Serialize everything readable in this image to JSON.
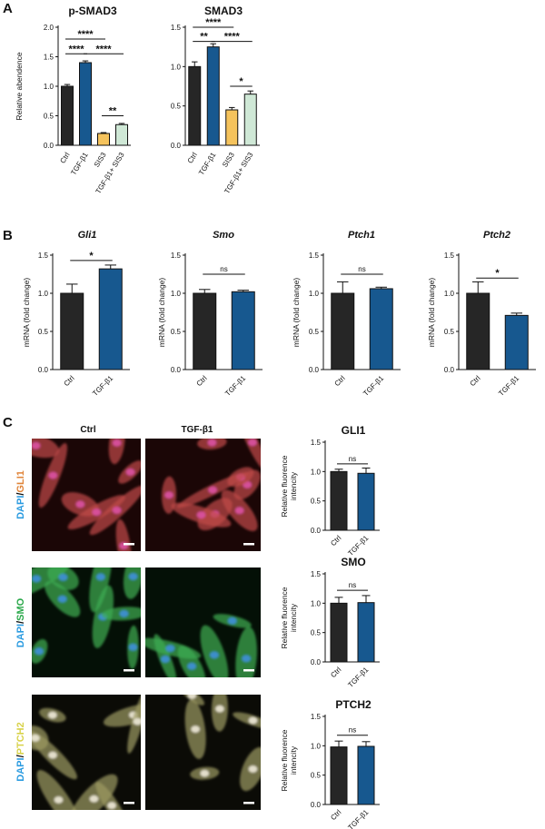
{
  "panel_labels": [
    "A",
    "B",
    "C"
  ],
  "micro": {
    "col_headers": [
      "Ctrl",
      "TGF-β1"
    ],
    "rows": [
      {
        "dapi": "DAPI",
        "sep": "/",
        "marker": "GLI1",
        "marker_color": "#e0853a",
        "bg": "#1b0606",
        "cell": "#c24a48",
        "nucleus": "#d8509e"
      },
      {
        "dapi": "DAPI",
        "sep": "/",
        "marker": "SMO",
        "marker_color": "#2aa84a",
        "bg": "#041006",
        "cell": "#3fae52",
        "nucleus": "#3e8fd2"
      },
      {
        "dapi": "DAPI",
        "sep": "/",
        "marker": "PTCH2",
        "marker_color": "#d8d24a",
        "bg": "#0b0b06",
        "cell": "#9c9a62",
        "nucleus": "#e8e4d2"
      }
    ],
    "dapi_color": "#2b9be0"
  },
  "colors": {
    "ctrl": "#262626",
    "tgf": "#17588f",
    "sis3": "#f5c35c",
    "combo": "#cfe8d6"
  },
  "chart_data": [
    {
      "id": "A1",
      "type": "bar",
      "title": "p-SMAD3",
      "title_italic": false,
      "ylabel": "Relative abendence",
      "categories": [
        "Ctrl",
        "TGF-β1",
        "SIS3",
        "TGF-β1+ SIS3"
      ],
      "values": [
        1.0,
        1.4,
        0.2,
        0.35
      ],
      "errors": [
        0.03,
        0.03,
        0.015,
        0.02
      ],
      "bar_colors": [
        "#262626",
        "#17588f",
        "#f5c35c",
        "#cfe8d6"
      ],
      "ylim": [
        0,
        2.0
      ],
      "yticks": [
        0.0,
        0.5,
        1.0,
        1.5,
        2.0
      ],
      "tick_labels": [
        "0.0",
        "0.5",
        "1.0",
        "1.5",
        "2.0"
      ],
      "sig": [
        {
          "a": 0,
          "b": 2,
          "label": "****",
          "y": 1.8
        },
        {
          "a": 0,
          "b": 1,
          "label": "****",
          "y": 1.55
        },
        {
          "a": 1,
          "b": 3,
          "label": "****",
          "y": 1.55
        },
        {
          "a": 2,
          "b": 3,
          "label": "**",
          "y": 0.5
        }
      ]
    },
    {
      "id": "A2",
      "type": "bar",
      "title": "SMAD3",
      "title_italic": false,
      "ylabel": "",
      "categories": [
        "Ctrl",
        "TGF-β1",
        "SIS3",
        "TGF-β1+ SIS3"
      ],
      "values": [
        1.0,
        1.25,
        0.45,
        0.65
      ],
      "errors": [
        0.06,
        0.04,
        0.03,
        0.04
      ],
      "bar_colors": [
        "#262626",
        "#17588f",
        "#f5c35c",
        "#cfe8d6"
      ],
      "ylim": [
        0,
        1.5
      ],
      "yticks": [
        0.0,
        0.5,
        1.0,
        1.5
      ],
      "tick_labels": [
        "0.0",
        "0.5",
        "1.0",
        "1.5"
      ],
      "sig": [
        {
          "a": 0,
          "b": 2,
          "label": "****",
          "y": 1.5
        },
        {
          "a": 0,
          "b": 1,
          "label": "**",
          "y": 1.32
        },
        {
          "a": 1,
          "b": 3,
          "label": "****",
          "y": 1.32
        },
        {
          "a": 2,
          "b": 3,
          "label": "*",
          "y": 0.75
        }
      ]
    },
    {
      "id": "B1",
      "type": "bar",
      "title": "Gli1",
      "title_italic": true,
      "ylabel": "mRNA (fold change)",
      "categories": [
        "Ctrl",
        "TGF-β1"
      ],
      "values": [
        1.0,
        1.32
      ],
      "errors": [
        0.12,
        0.05
      ],
      "bar_colors": [
        "#262626",
        "#17588f"
      ],
      "ylim": [
        0,
        1.5
      ],
      "yticks": [
        0.0,
        0.5,
        1.0,
        1.5
      ],
      "tick_labels": [
        "0.0",
        "0.5",
        "1.0",
        "1.5"
      ],
      "sig": [
        {
          "a": 0,
          "b": 1,
          "label": "*",
          "y": 1.43
        }
      ]
    },
    {
      "id": "B2",
      "type": "bar",
      "title": "Smo",
      "title_italic": true,
      "ylabel": "mRNA (fold change)",
      "categories": [
        "Ctrl",
        "TGF-β1"
      ],
      "values": [
        1.0,
        1.02
      ],
      "errors": [
        0.05,
        0.02
      ],
      "bar_colors": [
        "#262626",
        "#17588f"
      ],
      "ylim": [
        0,
        1.5
      ],
      "yticks": [
        0.0,
        0.5,
        1.0,
        1.5
      ],
      "tick_labels": [
        "0.0",
        "0.5",
        "1.0",
        "1.5"
      ],
      "sig": [
        {
          "a": 0,
          "b": 1,
          "label": "ns",
          "y": 1.25
        }
      ]
    },
    {
      "id": "B3",
      "type": "bar",
      "title": "Ptch1",
      "title_italic": true,
      "ylabel": "mRNA (fold change)",
      "categories": [
        "Ctrl",
        "TGF-β1"
      ],
      "values": [
        1.0,
        1.06
      ],
      "errors": [
        0.15,
        0.02
      ],
      "bar_colors": [
        "#262626",
        "#17588f"
      ],
      "ylim": [
        0,
        1.5
      ],
      "yticks": [
        0.0,
        0.5,
        1.0,
        1.5
      ],
      "tick_labels": [
        "0.0",
        "0.5",
        "1.0",
        "1.5"
      ],
      "sig": [
        {
          "a": 0,
          "b": 1,
          "label": "ns",
          "y": 1.25
        }
      ]
    },
    {
      "id": "B4",
      "type": "bar",
      "title": "Ptch2",
      "title_italic": true,
      "ylabel": "mRNA (fold change)",
      "categories": [
        "Ctrl",
        "TGF-β1"
      ],
      "values": [
        1.0,
        0.71
      ],
      "errors": [
        0.15,
        0.03
      ],
      "bar_colors": [
        "#262626",
        "#17588f"
      ],
      "ylim": [
        0,
        1.5
      ],
      "yticks": [
        0.0,
        0.5,
        1.0,
        1.5
      ],
      "tick_labels": [
        "0.0",
        "0.5",
        "1.0",
        "1.5"
      ],
      "sig": [
        {
          "a": 0,
          "b": 1,
          "label": "*",
          "y": 1.2
        }
      ]
    },
    {
      "id": "C1",
      "type": "bar",
      "title": "GLI1",
      "title_italic": false,
      "ylabel": "Relative fluorence intencity",
      "categories": [
        "Ctrl",
        "TGF-β1"
      ],
      "values": [
        1.0,
        0.97
      ],
      "errors": [
        0.04,
        0.09
      ],
      "bar_colors": [
        "#262626",
        "#17588f"
      ],
      "ylim": [
        0,
        1.5
      ],
      "yticks": [
        0.0,
        0.5,
        1.0,
        1.5
      ],
      "tick_labels": [
        "0.0",
        "0.5",
        "1.0",
        "1.5"
      ],
      "sig": [
        {
          "a": 0,
          "b": 1,
          "label": "ns",
          "y": 1.13
        }
      ]
    },
    {
      "id": "C2",
      "type": "bar",
      "title": "SMO",
      "title_italic": false,
      "ylabel": "Relative fluorence intencity",
      "categories": [
        "Ctrl",
        "TGF-β1"
      ],
      "values": [
        1.0,
        1.01
      ],
      "errors": [
        0.1,
        0.12
      ],
      "bar_colors": [
        "#262626",
        "#17588f"
      ],
      "ylim": [
        0,
        1.5
      ],
      "yticks": [
        0.0,
        0.5,
        1.0,
        1.5
      ],
      "tick_labels": [
        "0.0",
        "0.5",
        "1.0",
        "1.5"
      ],
      "sig": [
        {
          "a": 0,
          "b": 1,
          "label": "ns",
          "y": 1.22
        }
      ]
    },
    {
      "id": "C3",
      "type": "bar",
      "title": "PTCH2",
      "title_italic": false,
      "ylabel": "Relative fluorence intencity",
      "categories": [
        "Ctrl",
        "TGF-β1"
      ],
      "values": [
        0.98,
        0.99
      ],
      "errors": [
        0.1,
        0.08
      ],
      "bar_colors": [
        "#262626",
        "#17588f"
      ],
      "ylim": [
        0,
        1.5
      ],
      "yticks": [
        0.0,
        0.5,
        1.0,
        1.5
      ],
      "tick_labels": [
        "0.0",
        "0.5",
        "1.0",
        "1.5"
      ],
      "sig": [
        {
          "a": 0,
          "b": 1,
          "label": "ns",
          "y": 1.18
        }
      ]
    }
  ]
}
